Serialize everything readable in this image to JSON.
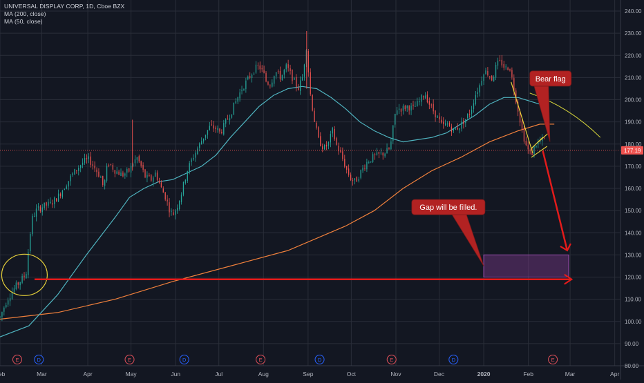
{
  "header": {
    "symbol_line": "UNIVERSAL DISPLAY CORP, 1D, Cboe BZX",
    "indicators": [
      "MA (200, close)",
      "MA (50, close)"
    ]
  },
  "colors": {
    "background": "#131722",
    "grid": "#2a2e39",
    "up_candle": "#26a69a",
    "down_candle": "#ef5350",
    "ma50": "#4fb3bf",
    "ma200": "#f0803c",
    "price_line": "#ef5350",
    "annotation_red": "#e31b1b",
    "callout_fill": "#b22222",
    "gap_box": "#7b3a8a",
    "highlight": "#e6d03a",
    "event_e": "#e0505a",
    "event_d": "#2962ff"
  },
  "chart_data": {
    "type": "candlestick",
    "title": "UNIVERSAL DISPLAY CORP, 1D, Cboe BZX",
    "ylim": [
      80,
      245
    ],
    "y_ticks": [
      "240.00",
      "230.00",
      "220.00",
      "210.00",
      "200.00",
      "190.00",
      "180.00",
      "170.00",
      "160.00",
      "150.00",
      "140.00",
      "130.00",
      "120.00",
      "110.00",
      "100.00",
      "90.00",
      "80.00"
    ],
    "y_tick_values": [
      240,
      230,
      220,
      210,
      200,
      190,
      180,
      170,
      160,
      150,
      140,
      130,
      120,
      110,
      100,
      90,
      80
    ],
    "x_ticks": [
      {
        "label": "Feb",
        "bold": false
      },
      {
        "label": "Mar",
        "bold": false
      },
      {
        "label": "Apr",
        "bold": false
      },
      {
        "label": "May",
        "bold": false
      },
      {
        "label": "Jun",
        "bold": false
      },
      {
        "label": "Jul",
        "bold": false
      },
      {
        "label": "Aug",
        "bold": false
      },
      {
        "label": "Sep",
        "bold": false
      },
      {
        "label": "Oct",
        "bold": false
      },
      {
        "label": "Nov",
        "bold": false
      },
      {
        "label": "Dec",
        "bold": false
      },
      {
        "label": "2020",
        "bold": true
      },
      {
        "label": "Feb",
        "bold": false
      },
      {
        "label": "Mar",
        "bold": false
      },
      {
        "label": "Apr",
        "bold": false
      }
    ],
    "x_tick_day": [
      0,
      29,
      61,
      91,
      122,
      152,
      183,
      214,
      244,
      275,
      305,
      336,
      367,
      396,
      427
    ],
    "current_price": 177.19,
    "current_price_label": "177.19",
    "price_path": [
      [
        0,
        102
      ],
      [
        5,
        110
      ],
      [
        10,
        115
      ],
      [
        15,
        119
      ],
      [
        18,
        121
      ],
      [
        20,
        134
      ],
      [
        22,
        146
      ],
      [
        25,
        150
      ],
      [
        30,
        152
      ],
      [
        35,
        153
      ],
      [
        40,
        156
      ],
      [
        45,
        161
      ],
      [
        50,
        166
      ],
      [
        55,
        170
      ],
      [
        58,
        172
      ],
      [
        62,
        173
      ],
      [
        65,
        170
      ],
      [
        70,
        165
      ],
      [
        72,
        160
      ],
      [
        75,
        172
      ],
      [
        80,
        168
      ],
      [
        85,
        166
      ],
      [
        90,
        168
      ],
      [
        92,
        171
      ],
      [
        95,
        174
      ],
      [
        98,
        170
      ],
      [
        101,
        165
      ],
      [
        105,
        164
      ],
      [
        108,
        167
      ],
      [
        112,
        160
      ],
      [
        115,
        156
      ],
      [
        118,
        150
      ],
      [
        120,
        148
      ],
      [
        123,
        152
      ],
      [
        126,
        158
      ],
      [
        130,
        168
      ],
      [
        134,
        174
      ],
      [
        138,
        179
      ],
      [
        142,
        184
      ],
      [
        146,
        188
      ],
      [
        150,
        187
      ],
      [
        153,
        185
      ],
      [
        157,
        190
      ],
      [
        161,
        195
      ],
      [
        165,
        201
      ],
      [
        168,
        205
      ],
      [
        171,
        208
      ],
      [
        174,
        211
      ],
      [
        177,
        214
      ],
      [
        180,
        215
      ],
      [
        183,
        212
      ],
      [
        185,
        208
      ],
      [
        188,
        207
      ],
      [
        191,
        213
      ],
      [
        195,
        210
      ],
      [
        199,
        215
      ],
      [
        203,
        210
      ],
      [
        207,
        205
      ],
      [
        210,
        210
      ],
      [
        213,
        225
      ],
      [
        215,
        205
      ],
      [
        218,
        192
      ],
      [
        221,
        182
      ],
      [
        225,
        178
      ],
      [
        228,
        180
      ],
      [
        231,
        186
      ],
      [
        234,
        179
      ],
      [
        237,
        175
      ],
      [
        241,
        168
      ],
      [
        244,
        164
      ],
      [
        247,
        163
      ],
      [
        251,
        168
      ],
      [
        255,
        172
      ],
      [
        259,
        174
      ],
      [
        263,
        175
      ],
      [
        267,
        176
      ],
      [
        271,
        178
      ],
      [
        275,
        196
      ],
      [
        279,
        196
      ],
      [
        283,
        197
      ],
      [
        287,
        196
      ],
      [
        291,
        199
      ],
      [
        295,
        203
      ],
      [
        299,
        197
      ],
      [
        303,
        193
      ],
      [
        307,
        188
      ],
      [
        311,
        189
      ],
      [
        315,
        186
      ],
      [
        319,
        188
      ],
      [
        323,
        191
      ],
      [
        327,
        195
      ],
      [
        330,
        202
      ],
      [
        333,
        206
      ],
      [
        336,
        213
      ],
      [
        339,
        212
      ],
      [
        342,
        209
      ],
      [
        345,
        216
      ],
      [
        348,
        217
      ],
      [
        351,
        214
      ],
      [
        354,
        215
      ],
      [
        357,
        205
      ],
      [
        360,
        195
      ],
      [
        363,
        185
      ],
      [
        366,
        178
      ],
      [
        369,
        175
      ],
      [
        372,
        180
      ],
      [
        375,
        181
      ],
      [
        378,
        182
      ]
    ],
    "ma50_path": [
      [
        0,
        93
      ],
      [
        20,
        98
      ],
      [
        40,
        112
      ],
      [
        60,
        130
      ],
      [
        80,
        147
      ],
      [
        90,
        156
      ],
      [
        100,
        160
      ],
      [
        110,
        163
      ],
      [
        120,
        164
      ],
      [
        130,
        167
      ],
      [
        140,
        170
      ],
      [
        150,
        175
      ],
      [
        160,
        183
      ],
      [
        170,
        190
      ],
      [
        180,
        197
      ],
      [
        190,
        202
      ],
      [
        200,
        205
      ],
      [
        210,
        206
      ],
      [
        220,
        205
      ],
      [
        230,
        201
      ],
      [
        240,
        196
      ],
      [
        250,
        190
      ],
      [
        260,
        186
      ],
      [
        270,
        183
      ],
      [
        280,
        181
      ],
      [
        290,
        182
      ],
      [
        300,
        183
      ],
      [
        310,
        185
      ],
      [
        320,
        189
      ],
      [
        330,
        193
      ],
      [
        340,
        198
      ],
      [
        350,
        201
      ],
      [
        360,
        201
      ],
      [
        370,
        199
      ],
      [
        380,
        197
      ]
    ],
    "ma200_path": [
      [
        0,
        101
      ],
      [
        40,
        104
      ],
      [
        80,
        110
      ],
      [
        120,
        118
      ],
      [
        160,
        125
      ],
      [
        200,
        132
      ],
      [
        240,
        143
      ],
      [
        260,
        150
      ],
      [
        280,
        160
      ],
      [
        300,
        168
      ],
      [
        320,
        174
      ],
      [
        340,
        181
      ],
      [
        360,
        186
      ],
      [
        375,
        189
      ],
      [
        385,
        189
      ]
    ],
    "events": [
      {
        "label": "E",
        "day": 12
      },
      {
        "label": "D",
        "day": 27
      },
      {
        "label": "E",
        "day": 90
      },
      {
        "label": "D",
        "day": 128
      },
      {
        "label": "E",
        "day": 181
      },
      {
        "label": "D",
        "day": 222
      },
      {
        "label": "E",
        "day": 272
      },
      {
        "label": "D",
        "day": 315
      },
      {
        "label": "E",
        "day": 384
      }
    ],
    "annotations": [
      {
        "text": "Bear flag",
        "type": "callout"
      },
      {
        "text": "Gap will be filled.",
        "type": "callout"
      }
    ],
    "gap_zone": {
      "from_day": 336,
      "to_day": 395,
      "low": 120,
      "high": 130
    },
    "support_level": 119
  }
}
